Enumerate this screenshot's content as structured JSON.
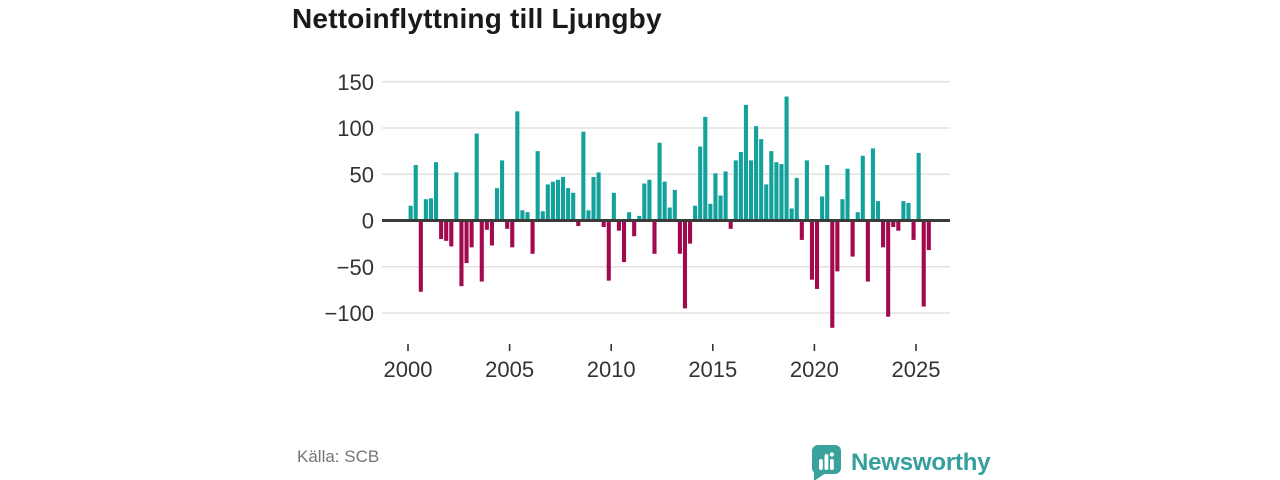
{
  "title": "Nettoinflyttning till Ljungby",
  "source": "Källa: SCB",
  "brand": {
    "name": "Newsworthy",
    "color": "#35a09b",
    "badge_color": "#3aa29c"
  },
  "colors": {
    "positive": "#13a29b",
    "negative": "#a30a4e",
    "grid": "#e2e2e2",
    "zero_line": "#3a3a3a",
    "axis_text": "#333333",
    "muted_text": "#757575",
    "title_text": "#1a1a1a"
  },
  "icons": {
    "logo": "newsworthy-badge-icon"
  },
  "chart_data": {
    "type": "bar",
    "title": "Nettoinflyttning till Ljungby",
    "frequency": "quarterly",
    "start_year": 2000,
    "start_quarter": 1,
    "values": [
      16,
      60,
      -77,
      23,
      24,
      63,
      -20,
      -22,
      -28,
      52,
      -71,
      -46,
      -29,
      94,
      -66,
      -10,
      -27,
      35,
      65,
      -9,
      -29,
      118,
      11,
      9,
      -36,
      75,
      10,
      39,
      42,
      44,
      47,
      35,
      30,
      -6,
      96,
      11,
      47,
      52,
      -7,
      -65,
      30,
      -11,
      -45,
      9,
      -17,
      5,
      40,
      44,
      -36,
      84,
      42,
      14,
      33,
      -36,
      -95,
      -25,
      16,
      80,
      112,
      18,
      51,
      27,
      53,
      -9,
      65,
      74,
      125,
      65,
      102,
      88,
      39,
      75,
      63,
      61,
      134,
      13,
      46,
      -21,
      65,
      -64,
      -74,
      26,
      60,
      -116,
      -55,
      23,
      56,
      -39,
      9,
      70,
      -66,
      78,
      21,
      -29,
      -104,
      -7,
      -11,
      21,
      19,
      -21,
      73,
      -93,
      -32
    ],
    "x_tick_labels": [
      "2000",
      "2005",
      "2010",
      "2015",
      "2020",
      "2025"
    ],
    "y_ticks": [
      150,
      100,
      50,
      0,
      -50,
      -100
    ],
    "ylim": [
      -130,
      155
    ],
    "grid": true,
    "legend": false,
    "positive_color": "#13a29b",
    "negative_color": "#a30a4e"
  }
}
